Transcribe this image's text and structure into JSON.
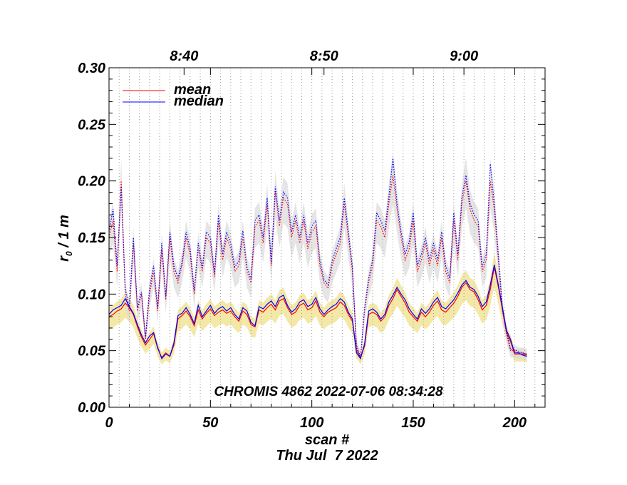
{
  "chart_data": {
    "type": "line",
    "title": "CHROMIS 4862 2022-07-06 08:34:28",
    "xlabel": "scan #",
    "date_label": "Thu Jul  7 2022",
    "ylabel_main": "r",
    "ylabel_sub": "0",
    "ylabel_rest": " / 1 m",
    "xlim": [
      0,
      215
    ],
    "ylim": [
      0,
      0.3
    ],
    "x_ticks": [
      0,
      50,
      100,
      150,
      200
    ],
    "x_tick_labels": [
      "0",
      "50",
      "100",
      "150",
      "200"
    ],
    "y_ticks": [
      0,
      0.05,
      0.1,
      0.15,
      0.2,
      0.25,
      0.3
    ],
    "y_tick_labels": [
      "0.00",
      "0.05",
      "0.10",
      "0.15",
      "0.20",
      "0.25",
      "0.30"
    ],
    "top_axis": {
      "tick_positions_scan": [
        37,
        106,
        175
      ],
      "tick_labels": [
        "8:40",
        "8:50",
        "9:00"
      ]
    },
    "vertical_gridlines_every_scans": 5,
    "legend": {
      "position": "top-left",
      "entries": [
        {
          "label": "mean",
          "color": "#ff0000"
        },
        {
          "label": "median",
          "color": "#0000ff"
        }
      ]
    },
    "colors": {
      "mean": "#ff0000",
      "median": "#0000ff",
      "lower_band": "#f0e08a",
      "upper_band": "#dcdcdc"
    },
    "sample_step_scans": 2,
    "series": [
      {
        "name": "mean",
        "style": "solid",
        "x_start": 0,
        "values": [
          0.08,
          0.082,
          0.085,
          0.087,
          0.092,
          0.088,
          0.082,
          0.071,
          0.062,
          0.055,
          0.06,
          0.065,
          0.052,
          0.044,
          0.048,
          0.045,
          0.055,
          0.078,
          0.081,
          0.085,
          0.08,
          0.072,
          0.086,
          0.078,
          0.083,
          0.087,
          0.081,
          0.084,
          0.086,
          0.083,
          0.085,
          0.08,
          0.076,
          0.085,
          0.082,
          0.073,
          0.071,
          0.086,
          0.084,
          0.088,
          0.091,
          0.086,
          0.094,
          0.096,
          0.088,
          0.082,
          0.084,
          0.09,
          0.092,
          0.086,
          0.088,
          0.094,
          0.084,
          0.08,
          0.084,
          0.086,
          0.088,
          0.093,
          0.09,
          0.082,
          0.076,
          0.05,
          0.044,
          0.054,
          0.082,
          0.084,
          0.082,
          0.076,
          0.08,
          0.09,
          0.096,
          0.104,
          0.098,
          0.092,
          0.084,
          0.08,
          0.076,
          0.084,
          0.08,
          0.084,
          0.09,
          0.094,
          0.086,
          0.084,
          0.088,
          0.092,
          0.098,
          0.106,
          0.11,
          0.104,
          0.102,
          0.095,
          0.086,
          0.09,
          0.104,
          0.124,
          0.106,
          0.086,
          0.066,
          0.058,
          0.047,
          0.047,
          0.047,
          0.046
        ],
        "values_dotted_upper": [
          0.15,
          0.165,
          0.12,
          0.2,
          0.1,
          0.085,
          0.145,
          0.085,
          0.1,
          0.06,
          0.1,
          0.12,
          0.085,
          0.14,
          0.095,
          0.15,
          0.12,
          0.11,
          0.125,
          0.15,
          0.135,
          0.1,
          0.14,
          0.12,
          0.15,
          0.145,
          0.115,
          0.165,
          0.13,
          0.15,
          0.14,
          0.12,
          0.125,
          0.15,
          0.12,
          0.11,
          0.16,
          0.165,
          0.145,
          0.18,
          0.125,
          0.19,
          0.16,
          0.185,
          0.18,
          0.15,
          0.165,
          0.145,
          0.165,
          0.14,
          0.155,
          0.16,
          0.125,
          0.11,
          0.105,
          0.125,
          0.135,
          0.145,
          0.18,
          0.15,
          0.12,
          0.055,
          0.045,
          0.085,
          0.11,
          0.125,
          0.165,
          0.16,
          0.15,
          0.18,
          0.205,
          0.175,
          0.15,
          0.13,
          0.14,
          0.165,
          0.12,
          0.13,
          0.145,
          0.125,
          0.14,
          0.125,
          0.15,
          0.12,
          0.11,
          0.165,
          0.13,
          0.18,
          0.2,
          0.175,
          0.165,
          0.16,
          0.12,
          0.13,
          0.2,
          0.175,
          0.13,
          0.085,
          0.065,
          0.05,
          0.05,
          0.048,
          0.048,
          0.047
        ]
      },
      {
        "name": "median",
        "style": "solid",
        "x_start": 0,
        "values": [
          0.082,
          0.086,
          0.088,
          0.09,
          0.096,
          0.089,
          0.083,
          0.073,
          0.064,
          0.057,
          0.063,
          0.066,
          0.053,
          0.043,
          0.047,
          0.045,
          0.057,
          0.081,
          0.083,
          0.088,
          0.082,
          0.074,
          0.09,
          0.08,
          0.085,
          0.09,
          0.083,
          0.087,
          0.089,
          0.085,
          0.088,
          0.082,
          0.078,
          0.088,
          0.085,
          0.075,
          0.072,
          0.089,
          0.087,
          0.091,
          0.094,
          0.089,
          0.097,
          0.099,
          0.09,
          0.084,
          0.087,
          0.093,
          0.095,
          0.089,
          0.091,
          0.097,
          0.087,
          0.082,
          0.086,
          0.089,
          0.091,
          0.096,
          0.093,
          0.084,
          0.078,
          0.048,
          0.043,
          0.056,
          0.085,
          0.087,
          0.084,
          0.078,
          0.082,
          0.093,
          0.099,
          0.106,
          0.1,
          0.095,
          0.087,
          0.082,
          0.078,
          0.087,
          0.083,
          0.087,
          0.093,
          0.097,
          0.089,
          0.087,
          0.091,
          0.095,
          0.101,
          0.108,
          0.112,
          0.106,
          0.104,
          0.098,
          0.089,
          0.093,
          0.108,
          0.126,
          0.108,
          0.088,
          0.068,
          0.06,
          0.048,
          0.048,
          0.046,
          0.045
        ],
        "values_dotted_upper": [
          0.155,
          0.175,
          0.125,
          0.195,
          0.105,
          0.088,
          0.15,
          0.088,
          0.102,
          0.062,
          0.105,
          0.125,
          0.088,
          0.145,
          0.098,
          0.155,
          0.125,
          0.114,
          0.128,
          0.155,
          0.14,
          0.103,
          0.145,
          0.123,
          0.155,
          0.15,
          0.118,
          0.17,
          0.135,
          0.155,
          0.145,
          0.124,
          0.129,
          0.156,
          0.124,
          0.113,
          0.165,
          0.17,
          0.15,
          0.185,
          0.128,
          0.195,
          0.165,
          0.19,
          0.185,
          0.155,
          0.17,
          0.15,
          0.17,
          0.145,
          0.16,
          0.165,
          0.13,
          0.113,
          0.108,
          0.129,
          0.14,
          0.15,
          0.185,
          0.155,
          0.124,
          0.053,
          0.043,
          0.088,
          0.114,
          0.13,
          0.172,
          0.165,
          0.156,
          0.186,
          0.22,
          0.18,
          0.155,
          0.135,
          0.146,
          0.172,
          0.125,
          0.135,
          0.15,
          0.13,
          0.145,
          0.13,
          0.155,
          0.125,
          0.114,
          0.172,
          0.135,
          0.186,
          0.205,
          0.18,
          0.17,
          0.165,
          0.124,
          0.135,
          0.215,
          0.18,
          0.135,
          0.088,
          0.067,
          0.051,
          0.051,
          0.049,
          0.048,
          0.047
        ]
      }
    ]
  }
}
